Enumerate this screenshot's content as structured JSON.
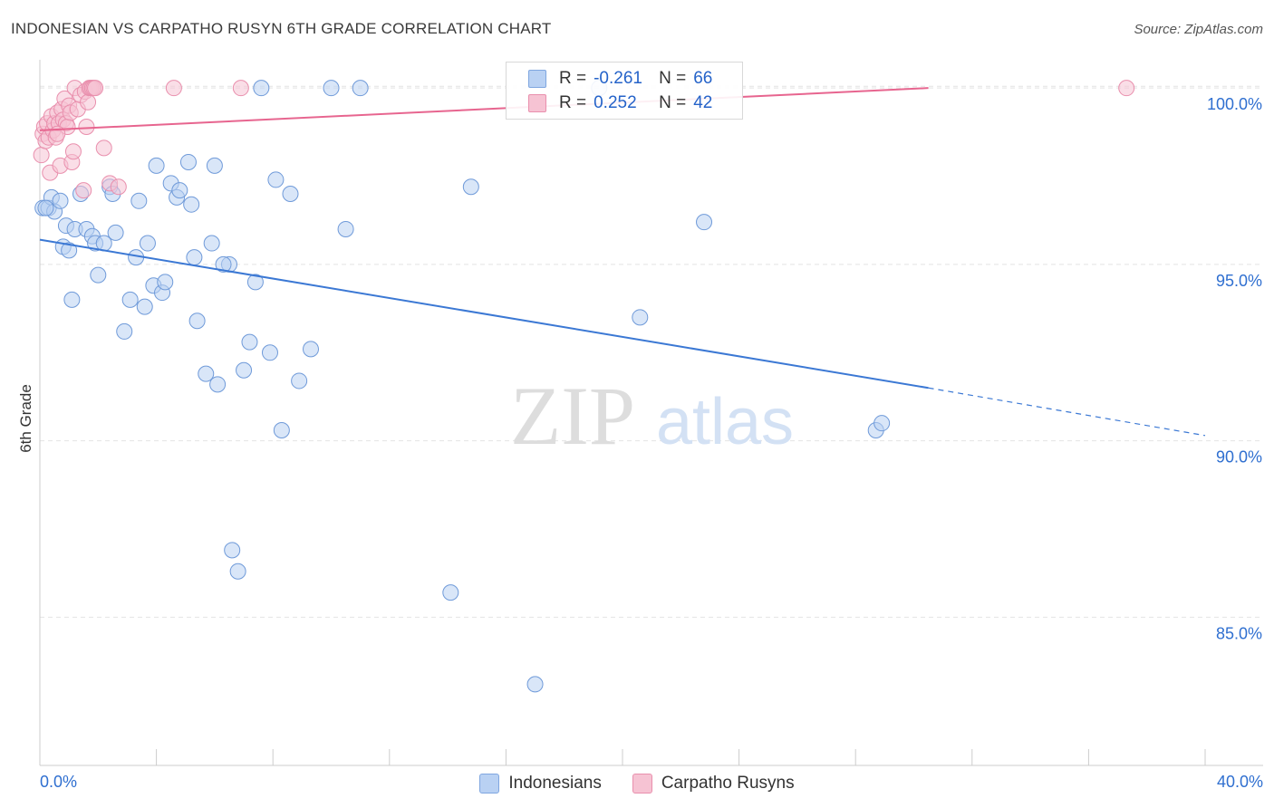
{
  "header": {
    "title": "INDONESIAN VS CARPATHO RUSYN 6TH GRADE CORRELATION CHART",
    "source": "Source: ZipAtlas.com"
  },
  "legend_top": {
    "rows": [
      {
        "label": "R =",
        "r": "-0.261",
        "n_label": "N =",
        "n": "66",
        "fill": "#b9d1f3",
        "stroke": "#7fa6e0"
      },
      {
        "label": "R =",
        "r": "0.252",
        "n_label": "N =",
        "n": "42",
        "fill": "#f6c3d3",
        "stroke": "#e98fad"
      }
    ]
  },
  "watermark": {
    "zip": "ZIP",
    "atlas": "atlas"
  },
  "chart_data": {
    "type": "scatter",
    "title": "INDONESIAN VS CARPATHO RUSYN 6TH GRADE CORRELATION CHART",
    "xlabel": "",
    "ylabel": "6th Grade",
    "xlim": [
      0,
      40
    ],
    "ylim": [
      80.8,
      100.8
    ],
    "x_tick_labels": [
      "0.0%",
      "40.0%"
    ],
    "y_ticks": [
      85,
      90,
      95,
      100
    ],
    "y_tick_labels": [
      "85.0%",
      "90.0%",
      "95.0%",
      "100.0%"
    ],
    "grid": true,
    "legend": "bottom",
    "colors": {
      "blue": "#3b78d4",
      "blue_fill": "#b9d1f3",
      "pink": "#e7658f",
      "pink_fill": "#f6c3d3",
      "tick_label": "#2f6fd0"
    },
    "series": [
      {
        "name": "Indonesians",
        "trend": {
          "x0": 0,
          "y0": 95.7,
          "x1": 30.5,
          "y1": 91.5,
          "dash_to_x": 40,
          "dash_to_y": 90.15
        },
        "points": [
          [
            0.1,
            96.6
          ],
          [
            0.3,
            96.6
          ],
          [
            0.4,
            96.9
          ],
          [
            0.5,
            96.5
          ],
          [
            0.7,
            96.8
          ],
          [
            0.8,
            95.5
          ],
          [
            0.9,
            96.1
          ],
          [
            1.0,
            95.4
          ],
          [
            1.1,
            94.0
          ],
          [
            1.2,
            96.0
          ],
          [
            1.4,
            97.0
          ],
          [
            1.6,
            96.0
          ],
          [
            1.8,
            95.8
          ],
          [
            1.9,
            95.6
          ],
          [
            2.0,
            94.7
          ],
          [
            2.4,
            97.2
          ],
          [
            2.5,
            97.0
          ],
          [
            2.6,
            95.9
          ],
          [
            2.9,
            93.1
          ],
          [
            3.1,
            94.0
          ],
          [
            3.3,
            95.2
          ],
          [
            3.4,
            96.8
          ],
          [
            3.6,
            93.8
          ],
          [
            3.7,
            95.6
          ],
          [
            3.9,
            94.4
          ],
          [
            4.0,
            97.8
          ],
          [
            4.2,
            94.2
          ],
          [
            4.3,
            94.5
          ],
          [
            4.5,
            97.3
          ],
          [
            4.7,
            96.9
          ],
          [
            4.8,
            97.1
          ],
          [
            5.1,
            97.9
          ],
          [
            5.2,
            96.7
          ],
          [
            5.3,
            95.2
          ],
          [
            5.4,
            93.4
          ],
          [
            5.7,
            91.9
          ],
          [
            5.9,
            95.6
          ],
          [
            6.0,
            97.8
          ],
          [
            6.1,
            91.6
          ],
          [
            6.5,
            95.0
          ],
          [
            6.6,
            86.9
          ],
          [
            6.8,
            86.3
          ],
          [
            7.0,
            92.0
          ],
          [
            7.2,
            92.8
          ],
          [
            7.4,
            94.5
          ],
          [
            7.6,
            100.0
          ],
          [
            7.9,
            92.5
          ],
          [
            8.1,
            97.4
          ],
          [
            8.3,
            90.3
          ],
          [
            8.6,
            97.0
          ],
          [
            8.9,
            91.7
          ],
          [
            9.3,
            92.6
          ],
          [
            10.0,
            100.0
          ],
          [
            10.5,
            96.0
          ],
          [
            11.0,
            100.0
          ],
          [
            14.1,
            85.7
          ],
          [
            14.8,
            97.2
          ],
          [
            17.0,
            83.1
          ],
          [
            19.2,
            100.0
          ],
          [
            20.6,
            93.5
          ],
          [
            22.8,
            96.2
          ],
          [
            28.7,
            90.3
          ],
          [
            28.9,
            90.5
          ],
          [
            0.2,
            96.6
          ],
          [
            2.2,
            95.6
          ],
          [
            6.3,
            95.0
          ]
        ]
      },
      {
        "name": "Carpatho Rusyns",
        "trend": {
          "x0": 0,
          "y0": 98.8,
          "x1": 30.5,
          "y1": 100.0
        },
        "points": [
          [
            0.05,
            98.1
          ],
          [
            0.1,
            98.7
          ],
          [
            0.15,
            98.9
          ],
          [
            0.2,
            98.5
          ],
          [
            0.25,
            99.0
          ],
          [
            0.3,
            98.6
          ],
          [
            0.35,
            97.6
          ],
          [
            0.4,
            99.2
          ],
          [
            0.45,
            98.8
          ],
          [
            0.5,
            99.0
          ],
          [
            0.55,
            98.6
          ],
          [
            0.6,
            99.3
          ],
          [
            0.65,
            99.0
          ],
          [
            0.7,
            97.8
          ],
          [
            0.75,
            99.4
          ],
          [
            0.8,
            99.1
          ],
          [
            0.85,
            99.7
          ],
          [
            0.9,
            99.0
          ],
          [
            0.95,
            98.9
          ],
          [
            1.0,
            99.5
          ],
          [
            1.05,
            99.3
          ],
          [
            1.1,
            97.9
          ],
          [
            1.15,
            98.2
          ],
          [
            1.2,
            100.0
          ],
          [
            1.3,
            99.4
          ],
          [
            1.4,
            99.8
          ],
          [
            1.5,
            97.1
          ],
          [
            1.55,
            99.9
          ],
          [
            1.6,
            98.9
          ],
          [
            1.65,
            99.6
          ],
          [
            1.7,
            100.0
          ],
          [
            1.75,
            100.0
          ],
          [
            1.8,
            100.0
          ],
          [
            1.85,
            100.0
          ],
          [
            1.9,
            100.0
          ],
          [
            2.2,
            98.3
          ],
          [
            2.4,
            97.3
          ],
          [
            2.7,
            97.2
          ],
          [
            4.6,
            100.0
          ],
          [
            6.9,
            100.0
          ],
          [
            37.3,
            100.0
          ],
          [
            0.6,
            98.7
          ]
        ]
      }
    ]
  }
}
